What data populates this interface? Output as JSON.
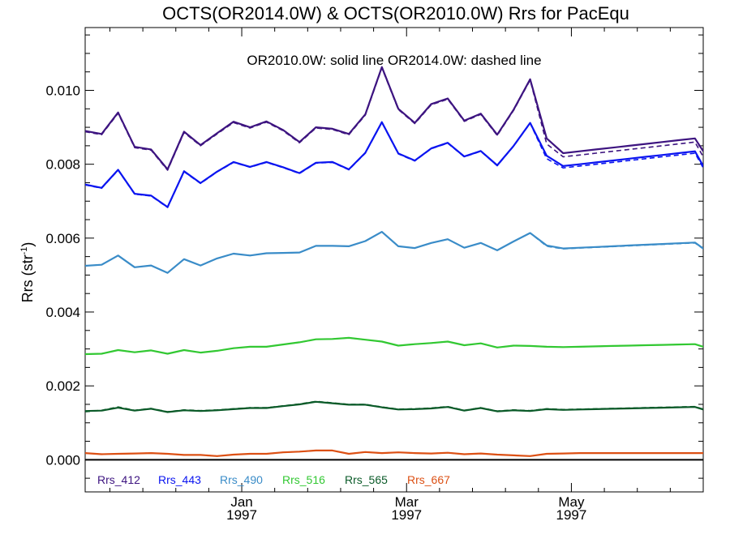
{
  "chart_data": {
    "type": "line",
    "title": "OCTS(OR2014.0W) & OCTS(OR2010.0W)  Rrs for PacEqu",
    "ylabel": "Rrs (str",
    "ylabel_sup": "-1",
    "ylabel_close": ")",
    "annotation": "OR2010.0W: solid line   OR2014.0W: dashed line",
    "ylim": [
      -0.00087,
      0.0117
    ],
    "xlim": [
      0,
      37.5
    ],
    "yticks": [
      0.0,
      0.002,
      0.004,
      0.006,
      0.008,
      0.01
    ],
    "ytick_labels": [
      "0.000",
      "0.002",
      "0.004",
      "0.006",
      "0.008",
      "0.010"
    ],
    "xticks": [
      {
        "x": 9.5,
        "month": "Jan",
        "year": "1997"
      },
      {
        "x": 19.5,
        "month": "Mar",
        "year": "1997"
      },
      {
        "x": 29.5,
        "month": "May",
        "year": "1997"
      }
    ],
    "zero_line": true,
    "legend_position": "bottom-left",
    "x": [
      0,
      1,
      2,
      3,
      4,
      5,
      6,
      7,
      8,
      9,
      10,
      11,
      12,
      13,
      14,
      15,
      16,
      17,
      18,
      19,
      20,
      21,
      22,
      23,
      24,
      25,
      26,
      27,
      28,
      29,
      30,
      31,
      32,
      33,
      34,
      35,
      36,
      37,
      37.5
    ],
    "series": [
      {
        "name": "Rrs_412",
        "color": "#3d1480",
        "values": [
          0.0089,
          0.00882,
          0.0094,
          0.00847,
          0.0084,
          0.00786,
          0.00888,
          0.00852,
          0.00884,
          0.00915,
          0.009,
          0.00916,
          0.00893,
          0.0086,
          0.009,
          0.00896,
          0.00882,
          0.00935,
          0.01063,
          0.0095,
          0.00912,
          0.00963,
          0.00978,
          0.00918,
          0.00937,
          0.0088,
          0.00948,
          0.0103,
          0.0087,
          0.0083,
          0.00835,
          0.0084,
          0.00845,
          0.0085,
          0.00855,
          0.0086,
          0.00865,
          0.0087,
          0.00835
        ],
        "dashed_values": [
          0.00888,
          0.0088,
          0.00938,
          0.00845,
          0.00838,
          0.00784,
          0.00886,
          0.0085,
          0.00882,
          0.00913,
          0.00898,
          0.00914,
          0.00891,
          0.00858,
          0.00898,
          0.00894,
          0.0088,
          0.00933,
          0.01061,
          0.00948,
          0.0091,
          0.00961,
          0.00976,
          0.00916,
          0.00935,
          0.00878,
          0.00946,
          0.01028,
          0.00855,
          0.0082,
          0.00825,
          0.0083,
          0.00835,
          0.0084,
          0.00845,
          0.0085,
          0.00855,
          0.0086,
          0.0082
        ]
      },
      {
        "name": "Rrs_443",
        "color": "#0a14f0",
        "values": [
          0.00745,
          0.00736,
          0.00785,
          0.0072,
          0.00715,
          0.00684,
          0.00781,
          0.00749,
          0.0078,
          0.00806,
          0.00793,
          0.00806,
          0.00792,
          0.00776,
          0.00804,
          0.00806,
          0.00786,
          0.00831,
          0.00914,
          0.00829,
          0.0081,
          0.00843,
          0.00858,
          0.00821,
          0.00836,
          0.00797,
          0.0085,
          0.00912,
          0.00823,
          0.00795,
          0.008,
          0.00805,
          0.0081,
          0.00815,
          0.0082,
          0.00825,
          0.0083,
          0.00835,
          0.00795
        ],
        "dashed_values": [
          0.00744,
          0.00735,
          0.00784,
          0.00719,
          0.00714,
          0.00683,
          0.0078,
          0.00748,
          0.00779,
          0.00805,
          0.00792,
          0.00805,
          0.00791,
          0.00775,
          0.00803,
          0.00805,
          0.00785,
          0.0083,
          0.00913,
          0.00828,
          0.00809,
          0.00842,
          0.00857,
          0.0082,
          0.00835,
          0.00796,
          0.00849,
          0.00911,
          0.00815,
          0.0079,
          0.00795,
          0.008,
          0.00805,
          0.0081,
          0.00815,
          0.0082,
          0.00825,
          0.0083,
          0.0079
        ]
      },
      {
        "name": "Rrs_490",
        "color": "#3a8cc8",
        "values": [
          0.00525,
          0.00528,
          0.00553,
          0.00521,
          0.00526,
          0.00506,
          0.00543,
          0.00526,
          0.00545,
          0.00558,
          0.00553,
          0.00559,
          0.0056,
          0.00561,
          0.00579,
          0.00579,
          0.00578,
          0.00592,
          0.00617,
          0.00578,
          0.00573,
          0.00587,
          0.00597,
          0.00574,
          0.00587,
          0.00567,
          0.00591,
          0.00614,
          0.0058,
          0.00572,
          0.00574,
          0.00576,
          0.00578,
          0.0058,
          0.00582,
          0.00584,
          0.00586,
          0.00588,
          0.00572
        ],
        "dashed_values": [
          0.00525,
          0.00528,
          0.00553,
          0.00521,
          0.00526,
          0.00506,
          0.00543,
          0.00526,
          0.00545,
          0.00558,
          0.00553,
          0.00559,
          0.0056,
          0.00561,
          0.00579,
          0.00579,
          0.00578,
          0.00592,
          0.00617,
          0.00578,
          0.00573,
          0.00587,
          0.00597,
          0.00574,
          0.00587,
          0.00567,
          0.00591,
          0.00614,
          0.00578,
          0.00571,
          0.00573,
          0.00575,
          0.00577,
          0.00579,
          0.00581,
          0.00583,
          0.00585,
          0.00587,
          0.00571
        ]
      },
      {
        "name": "Rrs_516",
        "color": "#32c832",
        "values": [
          0.00286,
          0.00287,
          0.00297,
          0.00291,
          0.00296,
          0.00287,
          0.00297,
          0.0029,
          0.00295,
          0.00302,
          0.00306,
          0.00306,
          0.00312,
          0.00318,
          0.00326,
          0.00327,
          0.0033,
          0.00325,
          0.0032,
          0.00309,
          0.00313,
          0.00316,
          0.0032,
          0.0031,
          0.00315,
          0.00304,
          0.00309,
          0.00308,
          0.00306,
          0.00305,
          0.00306,
          0.00307,
          0.00308,
          0.00309,
          0.0031,
          0.00311,
          0.00312,
          0.00313,
          0.00306
        ],
        "dashed_values": [
          0.00286,
          0.00287,
          0.00297,
          0.00291,
          0.00296,
          0.00287,
          0.00297,
          0.0029,
          0.00295,
          0.00302,
          0.00306,
          0.00306,
          0.00312,
          0.00318,
          0.00326,
          0.00327,
          0.0033,
          0.00325,
          0.0032,
          0.00309,
          0.00313,
          0.00316,
          0.0032,
          0.0031,
          0.00315,
          0.00304,
          0.00309,
          0.00308,
          0.00306,
          0.00305,
          0.00306,
          0.00307,
          0.00308,
          0.00309,
          0.0031,
          0.00311,
          0.00312,
          0.00313,
          0.00306
        ]
      },
      {
        "name": "Rrs_565",
        "color": "#0a5a28",
        "values": [
          0.00132,
          0.00133,
          0.00141,
          0.00133,
          0.00138,
          0.00129,
          0.00134,
          0.00132,
          0.00134,
          0.00137,
          0.0014,
          0.0014,
          0.00145,
          0.0015,
          0.00157,
          0.00153,
          0.00149,
          0.00149,
          0.00142,
          0.00136,
          0.00137,
          0.00139,
          0.00143,
          0.00133,
          0.0014,
          0.00131,
          0.00134,
          0.00132,
          0.00137,
          0.00135,
          0.00136,
          0.00137,
          0.00138,
          0.00139,
          0.0014,
          0.00141,
          0.00142,
          0.00143,
          0.00136
        ],
        "dashed_values": [
          0.0013,
          0.00134,
          0.00143,
          0.00134,
          0.00139,
          0.0013,
          0.00135,
          0.00133,
          0.00135,
          0.00138,
          0.00141,
          0.00141,
          0.00146,
          0.00151,
          0.00158,
          0.00154,
          0.0015,
          0.0015,
          0.00143,
          0.00137,
          0.00138,
          0.0014,
          0.00144,
          0.00134,
          0.00141,
          0.00132,
          0.00135,
          0.00133,
          0.00138,
          0.00136,
          0.00137,
          0.00138,
          0.00139,
          0.0014,
          0.00141,
          0.00142,
          0.00143,
          0.00144,
          0.00137
        ]
      },
      {
        "name": "Rrs_667",
        "color": "#dc5014",
        "values": [
          0.00018,
          0.00015,
          0.00016,
          0.00017,
          0.00018,
          0.00016,
          0.00013,
          0.00013,
          0.0001,
          0.00014,
          0.00016,
          0.00016,
          0.0002,
          0.00022,
          0.00025,
          0.00025,
          0.00016,
          0.00021,
          0.00018,
          0.0002,
          0.00018,
          0.00017,
          0.00019,
          0.00015,
          0.00017,
          0.00014,
          0.00012,
          0.0001,
          0.00016,
          0.00017,
          0.00018,
          0.00018,
          0.00018,
          0.00018,
          0.00018,
          0.00018,
          0.00018,
          0.00018,
          0.00018
        ],
        "dashed_values": [
          0.00018,
          0.00015,
          0.00016,
          0.00017,
          0.00018,
          0.00016,
          0.00013,
          0.00013,
          0.0001,
          0.00014,
          0.00016,
          0.00016,
          0.0002,
          0.00022,
          0.00025,
          0.00025,
          0.00016,
          0.00021,
          0.00018,
          0.0002,
          0.00018,
          0.00017,
          0.00019,
          0.00015,
          0.00017,
          0.00014,
          0.00012,
          0.0001,
          0.00016,
          0.00017,
          0.00018,
          0.00018,
          0.00018,
          0.00018,
          0.00018,
          0.00018,
          0.00018,
          0.00018,
          0.00018
        ]
      }
    ]
  }
}
